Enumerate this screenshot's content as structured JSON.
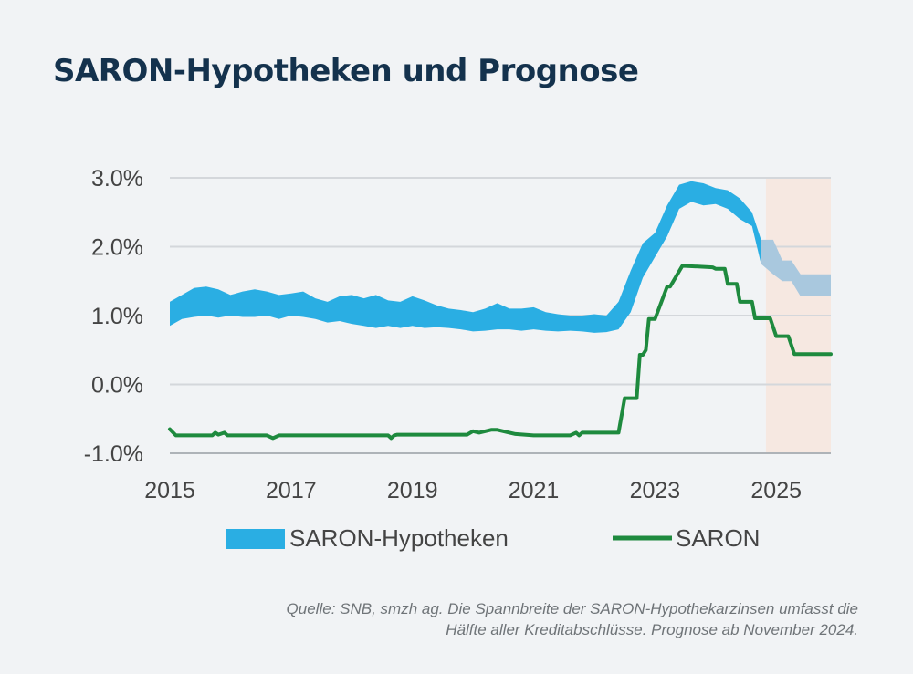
{
  "title": "SARON-Hypotheken und Prognose",
  "source": "Quelle: SNB, smzh ag. Die Spannbreite der SARON-Hypothekarzinsen umfasst die Hälfte aller Kreditabschlüsse. Prognose ab November 2024.",
  "colors": {
    "band": "#2aaee3",
    "band_forecast": "#a9c8de",
    "saron": "#1e8a3e",
    "forecast_bg": "#f6e8e1",
    "grid": "#d4d7db",
    "axis": "#aeb3b8"
  },
  "chart_data": {
    "type": "area",
    "title": "SARON-Hypotheken und Prognose",
    "xlabel": "",
    "ylabel": "",
    "xlim": [
      2015.0,
      2025.9
    ],
    "ylim": [
      -1.0,
      3.0
    ],
    "x_ticks": [
      2015,
      2017,
      2019,
      2021,
      2023,
      2025
    ],
    "x_tick_labels": [
      "2015",
      "2017",
      "2019",
      "2021",
      "2023",
      "2025"
    ],
    "y_ticks": [
      -1.0,
      0.0,
      1.0,
      2.0,
      3.0
    ],
    "y_tick_labels": [
      "-1.0%",
      "0.0%",
      "1.0%",
      "2.0%",
      "3.0%"
    ],
    "grid": true,
    "legend_position": "bottom",
    "forecast_start": 2024.83,
    "series": [
      {
        "name": "SARON-Hypotheken",
        "kind": "band",
        "x": [
          2015.0,
          2015.2,
          2015.4,
          2015.6,
          2015.8,
          2016.0,
          2016.2,
          2016.4,
          2016.6,
          2016.8,
          2017.0,
          2017.2,
          2017.4,
          2017.6,
          2017.8,
          2018.0,
          2018.2,
          2018.4,
          2018.6,
          2018.8,
          2019.0,
          2019.2,
          2019.4,
          2019.6,
          2019.8,
          2020.0,
          2020.2,
          2020.4,
          2020.6,
          2020.8,
          2021.0,
          2021.2,
          2021.4,
          2021.6,
          2021.8,
          2022.0,
          2022.2,
          2022.4,
          2022.6,
          2022.8,
          2023.0,
          2023.2,
          2023.4,
          2023.6,
          2023.8,
          2024.0,
          2024.2,
          2024.4,
          2024.6,
          2024.75
        ],
        "low": [
          0.85,
          0.95,
          0.98,
          1.0,
          0.97,
          1.0,
          0.98,
          0.98,
          1.0,
          0.95,
          1.0,
          0.98,
          0.95,
          0.9,
          0.92,
          0.88,
          0.85,
          0.82,
          0.85,
          0.82,
          0.85,
          0.82,
          0.83,
          0.82,
          0.8,
          0.77,
          0.78,
          0.8,
          0.8,
          0.78,
          0.8,
          0.78,
          0.77,
          0.78,
          0.77,
          0.75,
          0.76,
          0.8,
          1.05,
          1.55,
          1.85,
          2.15,
          2.55,
          2.65,
          2.6,
          2.62,
          2.55,
          2.4,
          2.3,
          1.75
        ],
        "high": [
          1.2,
          1.3,
          1.4,
          1.42,
          1.38,
          1.3,
          1.35,
          1.38,
          1.35,
          1.3,
          1.32,
          1.35,
          1.25,
          1.2,
          1.28,
          1.3,
          1.25,
          1.3,
          1.22,
          1.2,
          1.28,
          1.22,
          1.15,
          1.1,
          1.08,
          1.05,
          1.1,
          1.18,
          1.1,
          1.1,
          1.12,
          1.05,
          1.02,
          1.0,
          1.0,
          1.02,
          1.0,
          1.2,
          1.65,
          2.05,
          2.2,
          2.6,
          2.9,
          2.95,
          2.92,
          2.85,
          2.82,
          2.7,
          2.5,
          2.1
        ]
      },
      {
        "name": "SARON-Hypotheken Prognose",
        "kind": "band",
        "x": [
          2024.75,
          2024.95,
          2025.1,
          2025.25,
          2025.4,
          2025.55,
          2025.7,
          2025.9
        ],
        "low": [
          1.75,
          1.6,
          1.5,
          1.5,
          1.28,
          1.28,
          1.28,
          1.28
        ],
        "high": [
          2.1,
          2.1,
          1.8,
          1.8,
          1.6,
          1.6,
          1.6,
          1.6
        ]
      },
      {
        "name": "SARON",
        "kind": "line",
        "x": [
          2015.0,
          2015.1,
          2015.7,
          2015.75,
          2015.8,
          2015.9,
          2015.95,
          2016.0,
          2016.6,
          2016.7,
          2016.8,
          2018.6,
          2018.65,
          2018.7,
          2018.75,
          2019.0,
          2019.9,
          2020.0,
          2020.1,
          2020.3,
          2020.4,
          2020.6,
          2020.7,
          2021.0,
          2021.6,
          2021.7,
          2021.75,
          2021.8,
          2022.4,
          2022.5,
          2022.7,
          2022.75,
          2022.8,
          2022.85,
          2022.9,
          2023.0,
          2023.2,
          2023.25,
          2023.45,
          2023.5,
          2023.95,
          2024.0,
          2024.15,
          2024.2,
          2024.35,
          2024.4,
          2024.6,
          2024.65,
          2024.9,
          2025.0,
          2025.2,
          2025.3,
          2025.9
        ],
        "y": [
          -0.65,
          -0.74,
          -0.74,
          -0.7,
          -0.73,
          -0.7,
          -0.74,
          -0.74,
          -0.74,
          -0.78,
          -0.74,
          -0.74,
          -0.78,
          -0.74,
          -0.73,
          -0.73,
          -0.73,
          -0.68,
          -0.7,
          -0.66,
          -0.66,
          -0.7,
          -0.72,
          -0.74,
          -0.74,
          -0.7,
          -0.74,
          -0.7,
          -0.7,
          -0.2,
          -0.2,
          0.43,
          0.43,
          0.5,
          0.95,
          0.95,
          1.42,
          1.42,
          1.72,
          1.72,
          1.7,
          1.68,
          1.68,
          1.46,
          1.46,
          1.2,
          1.2,
          0.96,
          0.96,
          0.7,
          0.7,
          0.44,
          0.44
        ]
      }
    ],
    "legend": [
      {
        "label": "SARON-Hypotheken",
        "marker": "band"
      },
      {
        "label": "SARON",
        "marker": "line"
      }
    ]
  }
}
